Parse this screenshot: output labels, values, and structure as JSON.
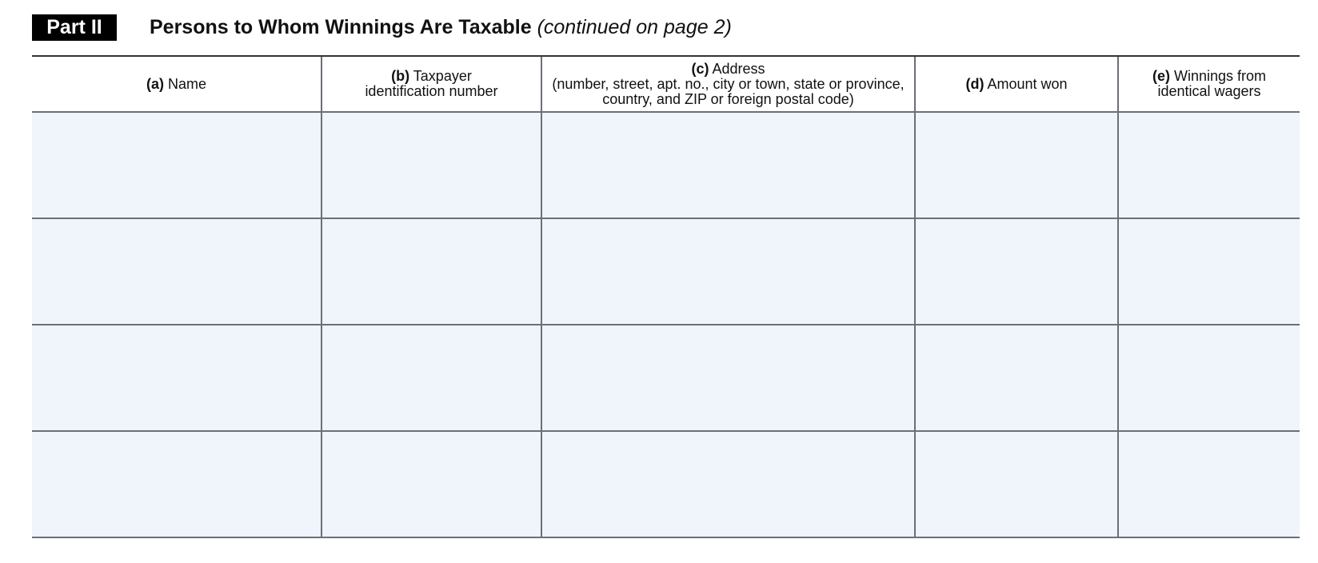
{
  "header": {
    "part_label": "Part II",
    "title": "Persons to Whom Winnings Are Taxable",
    "title_note": "(continued on page 2)"
  },
  "table": {
    "columns": [
      {
        "letter": "(a)",
        "label": " Name",
        "line2": ""
      },
      {
        "letter": "(b)",
        "label": " Taxpayer",
        "line2": "identification number"
      },
      {
        "letter": "(c)",
        "label": " Address",
        "line2": "(number, street, apt. no., city or town, state or province, country, and ZIP or foreign postal code)"
      },
      {
        "letter": "(d)",
        "label": " Amount won",
        "line2": ""
      },
      {
        "letter": "(e)",
        "label": " Winnings from",
        "line2": "identical wagers"
      }
    ],
    "row_count": 4,
    "fill_color": "#f0f4fb"
  }
}
